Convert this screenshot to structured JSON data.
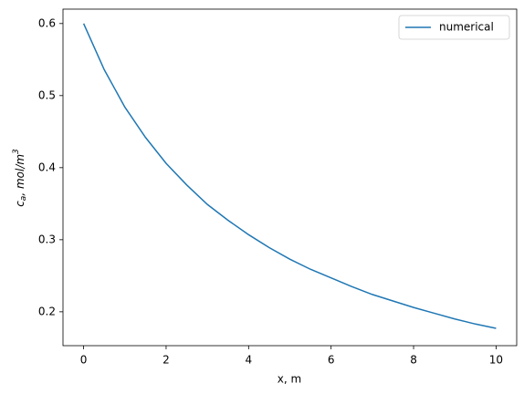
{
  "chart_data": {
    "type": "line",
    "xlabel": "x, m",
    "ylabel": [
      "c",
      "a",
      ", mol/m",
      "3"
    ],
    "x": [
      0,
      0.5,
      1,
      1.5,
      2,
      2.5,
      3,
      3.5,
      4,
      4.5,
      5,
      5.5,
      6,
      6.5,
      7,
      7.5,
      8,
      8.5,
      9,
      9.5,
      10
    ],
    "series": [
      {
        "name": "numerical",
        "color": "#1f77b4",
        "values": [
          0.6,
          0.536,
          0.484,
          0.442,
          0.406,
          0.376,
          0.349,
          0.327,
          0.307,
          0.289,
          0.273,
          0.259,
          0.247,
          0.235,
          0.224,
          0.215,
          0.206,
          0.198,
          0.19,
          0.183,
          0.177
        ]
      }
    ],
    "xlim": [
      -0.5,
      10.5
    ],
    "ylim": [
      0.153,
      0.62
    ],
    "xticks": [
      0,
      2,
      4,
      6,
      8,
      10
    ],
    "yticks": [
      0.2,
      0.3,
      0.4,
      0.5,
      0.6
    ],
    "legend": "upper right"
  }
}
